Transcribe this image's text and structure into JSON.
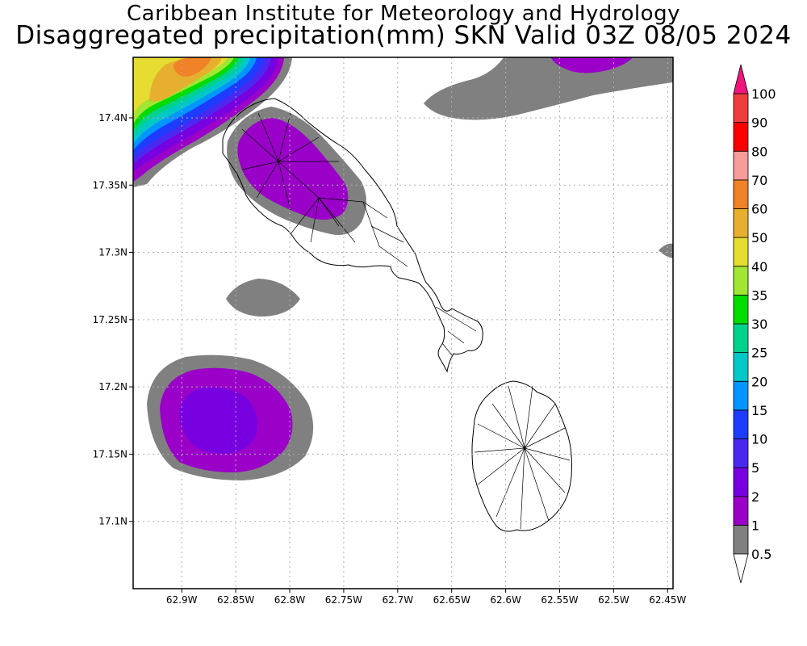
{
  "title": {
    "line1": "Caribbean Institute for Meteorology and Hydrology",
    "line2": "Disaggregated precipitation(mm) SKN Valid 03Z 08/05 2024"
  },
  "map": {
    "lon_range": [
      -62.945,
      -62.445
    ],
    "lat_range": [
      17.05,
      17.445
    ],
    "x_ticks": [
      {
        "lon": -62.9,
        "label": "62.9W"
      },
      {
        "lon": -62.85,
        "label": "62.85W"
      },
      {
        "lon": -62.8,
        "label": "62.8W"
      },
      {
        "lon": -62.75,
        "label": "62.75W"
      },
      {
        "lon": -62.7,
        "label": "62.7W"
      },
      {
        "lon": -62.65,
        "label": "62.65W"
      },
      {
        "lon": -62.6,
        "label": "62.6W"
      },
      {
        "lon": -62.55,
        "label": "62.55W"
      },
      {
        "lon": -62.5,
        "label": "62.5W"
      },
      {
        "lon": -62.45,
        "label": "62.45W"
      }
    ],
    "y_ticks": [
      {
        "lat": 17.4,
        "label": "17.4N"
      },
      {
        "lat": 17.35,
        "label": "17.35N"
      },
      {
        "lat": 17.3,
        "label": "17.3N"
      },
      {
        "lat": 17.25,
        "label": "17.25N"
      },
      {
        "lat": 17.2,
        "label": "17.2N"
      },
      {
        "lat": 17.15,
        "label": "17.15N"
      },
      {
        "lat": 17.1,
        "label": "17.1N"
      }
    ],
    "grid": true
  },
  "colorbar": {
    "levels": [
      {
        "label": "0.5",
        "color": "#808080"
      },
      {
        "label": "1",
        "color": "#9a00c8"
      },
      {
        "label": "2",
        "color": "#7800e0"
      },
      {
        "label": "5",
        "color": "#4b28f0"
      },
      {
        "label": "10",
        "color": "#1e3cff"
      },
      {
        "label": "15",
        "color": "#0096ff"
      },
      {
        "label": "20",
        "color": "#00c8c8"
      },
      {
        "label": "25",
        "color": "#00d28c"
      },
      {
        "label": "30",
        "color": "#00dc00"
      },
      {
        "label": "35",
        "color": "#a0e632"
      },
      {
        "label": "40",
        "color": "#e6dc32"
      },
      {
        "label": "50",
        "color": "#e6af2d"
      },
      {
        "label": "60",
        "color": "#f08228"
      },
      {
        "label": "70",
        "color": "#fa9b9b"
      },
      {
        "label": "80",
        "color": "#fa0000"
      },
      {
        "label": "90",
        "color": "#f03c3c"
      },
      {
        "label": "100",
        "color": "#f0147d"
      }
    ],
    "under_color": "#ffffff",
    "over_color": "#f0147d"
  }
}
